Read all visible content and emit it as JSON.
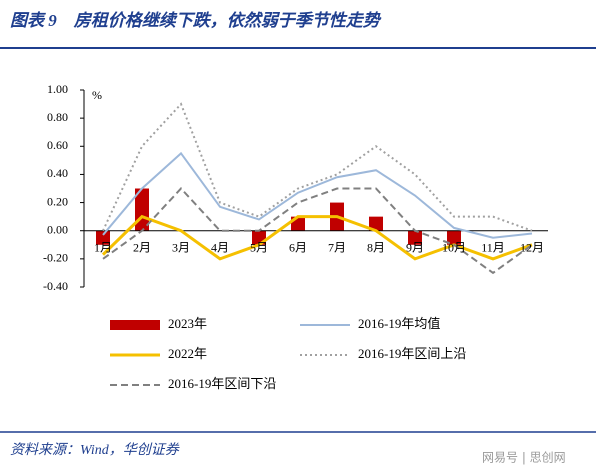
{
  "chart_data": {
    "type": "bar-line",
    "title": "图表 9　房租价格继续下跌，依然弱于季节性走势",
    "unit": "%",
    "categories": [
      "1月",
      "2月",
      "3月",
      "4月",
      "5月",
      "6月",
      "7月",
      "8月",
      "9月",
      "10月",
      "11月",
      "12月"
    ],
    "ylim": [
      -0.4,
      1.0
    ],
    "yticks": [
      {
        "value": 1.0,
        "label": "1.00"
      },
      {
        "value": 0.8,
        "label": "0.80"
      },
      {
        "value": 0.6,
        "label": "0.60"
      },
      {
        "value": 0.4,
        "label": "0.40"
      },
      {
        "value": 0.2,
        "label": "0.20"
      },
      {
        "value": 0,
        "label": "0.00"
      },
      {
        "value": -0.2,
        "label": "-0.20"
      },
      {
        "value": -0.4,
        "label": "-0.40"
      }
    ],
    "series": [
      {
        "name": "2023年",
        "type": "bar",
        "color": "#c00000",
        "values": [
          -0.1,
          0.3,
          0,
          0,
          -0.1,
          0.1,
          0.2,
          0.1,
          -0.1,
          -0.1,
          null,
          null
        ]
      },
      {
        "name": "2016-19年均值",
        "type": "line",
        "style": "solid",
        "color": "#9db8da",
        "values": [
          -0.03,
          0.3,
          0.55,
          0.17,
          0.08,
          0.27,
          0.38,
          0.43,
          0.25,
          0.02,
          -0.05,
          -0.02
        ]
      },
      {
        "name": "2022年",
        "type": "line",
        "style": "solid",
        "color": "#f5c000",
        "values": [
          -0.17,
          0.1,
          0.0,
          -0.2,
          -0.1,
          0.1,
          0.1,
          0.0,
          -0.2,
          -0.1,
          -0.2,
          -0.1
        ]
      },
      {
        "name": "2016-19年区间上沿",
        "type": "line",
        "style": "dotted",
        "color": "#a0a0a0",
        "values": [
          0.0,
          0.6,
          0.9,
          0.2,
          0.1,
          0.3,
          0.4,
          0.6,
          0.4,
          0.1,
          0.1,
          0.0
        ]
      },
      {
        "name": "2016-19年区间下沿",
        "type": "line",
        "style": "dashed",
        "color": "#808080",
        "values": [
          -0.2,
          0.0,
          0.3,
          0.0,
          0.0,
          0.2,
          0.3,
          0.3,
          0.0,
          -0.1,
          -0.3,
          -0.1
        ]
      }
    ]
  },
  "source": "资料来源：Wind，华创证券",
  "watermark": "网易号 | 思创网"
}
